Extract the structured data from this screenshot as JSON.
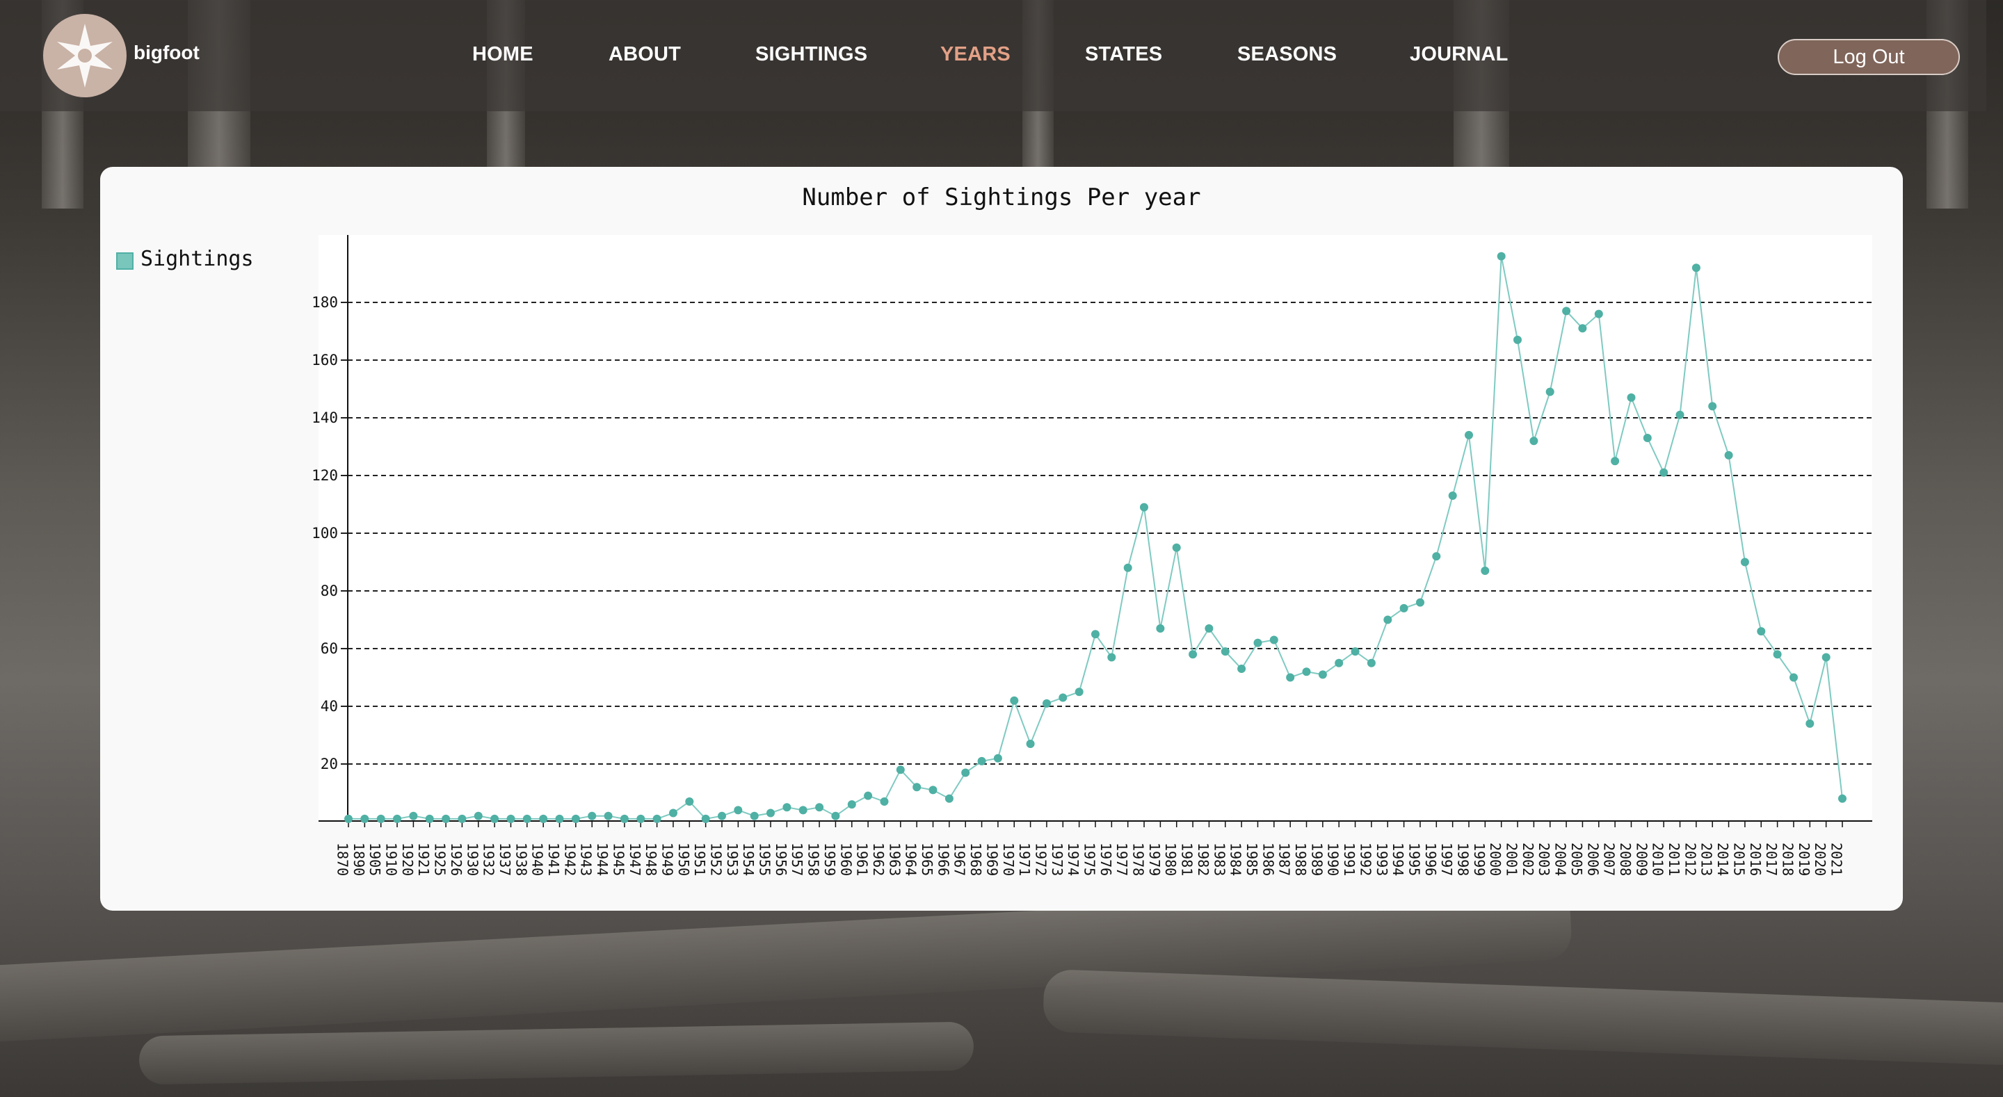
{
  "app": {
    "brand": "bigfoot"
  },
  "nav": {
    "items": [
      {
        "label": "HOME",
        "active": false
      },
      {
        "label": "ABOUT",
        "active": false
      },
      {
        "label": "SIGHTINGS",
        "active": false
      },
      {
        "label": "YEARS",
        "active": true
      },
      {
        "label": "STATES",
        "active": false
      },
      {
        "label": "SEASONS",
        "active": false
      },
      {
        "label": "JOURNAL",
        "active": false
      }
    ],
    "logout_label": "Log Out",
    "active_color": "#e3a187"
  },
  "chart_data": {
    "type": "line",
    "title": "Number of Sightings Per year",
    "xlabel": "",
    "ylabel": "",
    "legend": {
      "placement": "top-left",
      "entries": [
        "Sightings"
      ]
    },
    "grid": "horizontal dashed",
    "ylim": [
      0,
      200
    ],
    "yticks": [
      20,
      40,
      60,
      80,
      100,
      120,
      140,
      160,
      180
    ],
    "series_color": "#4fb0a4",
    "x": [
      "1870",
      "1890",
      "1905",
      "1910",
      "1920",
      "1921",
      "1925",
      "1926",
      "1930",
      "1932",
      "1937",
      "1938",
      "1940",
      "1941",
      "1942",
      "1943",
      "1944",
      "1945",
      "1947",
      "1948",
      "1949",
      "1950",
      "1951",
      "1952",
      "1953",
      "1954",
      "1955",
      "1956",
      "1957",
      "1958",
      "1959",
      "1960",
      "1961",
      "1962",
      "1963",
      "1964",
      "1965",
      "1966",
      "1967",
      "1968",
      "1969",
      "1970",
      "1971",
      "1972",
      "1973",
      "1974",
      "1975",
      "1976",
      "1977",
      "1978",
      "1979",
      "1980",
      "1981",
      "1982",
      "1983",
      "1984",
      "1985",
      "1986",
      "1987",
      "1988",
      "1989",
      "1990",
      "1991",
      "1992",
      "1993",
      "1994",
      "1995",
      "1996",
      "1997",
      "1998",
      "1999",
      "2000",
      "2001",
      "2002",
      "2003",
      "2004",
      "2005",
      "2006",
      "2007",
      "2008",
      "2009",
      "2010",
      "2011",
      "2012",
      "2013",
      "2014",
      "2015",
      "2016",
      "2017",
      "2018",
      "2019",
      "2020",
      "2021"
    ],
    "series": [
      {
        "name": "Sightings",
        "values": [
          1,
          1,
          1,
          1,
          2,
          1,
          1,
          1,
          2,
          1,
          1,
          1,
          1,
          1,
          1,
          2,
          2,
          1,
          1,
          1,
          3,
          7,
          1,
          2,
          4,
          2,
          3,
          5,
          4,
          5,
          2,
          6,
          9,
          7,
          18,
          12,
          11,
          8,
          17,
          21,
          22,
          42,
          27,
          41,
          43,
          45,
          65,
          57,
          88,
          109,
          67,
          95,
          58,
          67,
          59,
          53,
          62,
          63,
          50,
          52,
          51,
          55,
          59,
          55,
          70,
          74,
          76,
          92,
          113,
          134,
          87,
          196,
          167,
          132,
          149,
          177,
          171,
          176,
          125,
          147,
          133,
          121,
          141,
          192,
          144,
          127,
          90,
          66,
          58,
          50,
          34,
          57,
          8
        ]
      }
    ]
  }
}
